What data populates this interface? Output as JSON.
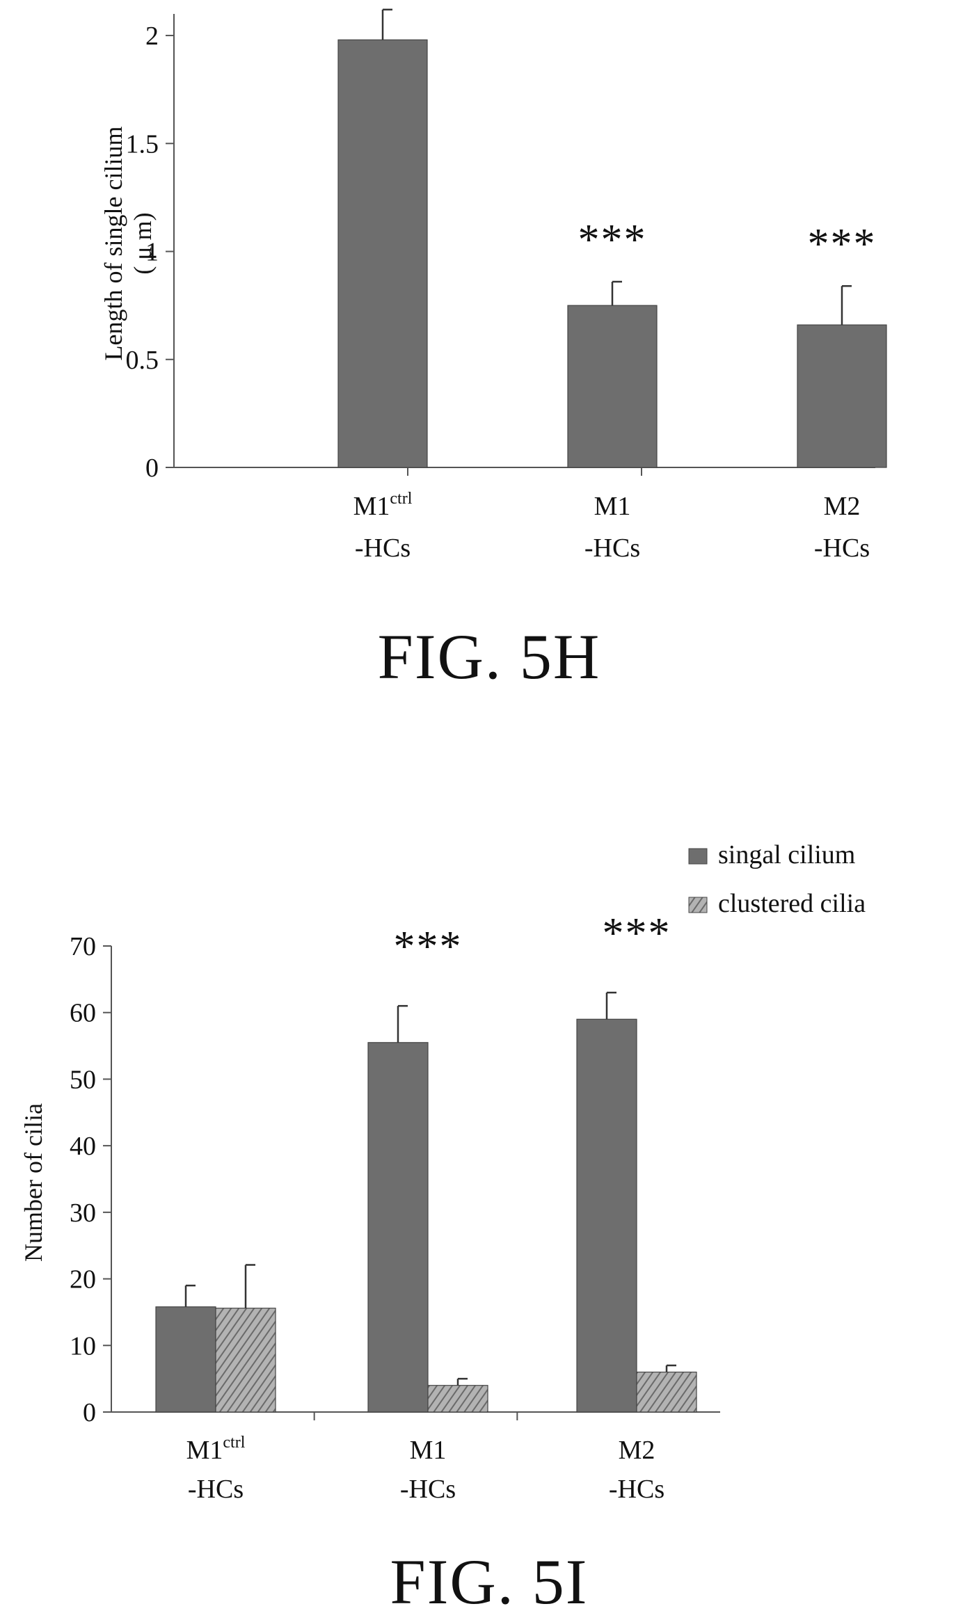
{
  "charts": [
    {
      "id": "fig5h",
      "caption": "FIG. 5H",
      "chart_data": {
        "type": "bar",
        "categories": [
          {
            "main": "M1",
            "sup": "ctrl",
            "sub": "-HCs"
          },
          {
            "main": "M1",
            "sup": "",
            "sub": "-HCs"
          },
          {
            "main": "M2",
            "sup": "",
            "sub": "-HCs"
          }
        ],
        "series": [
          {
            "values": [
              1.98,
              0.75,
              0.66
            ],
            "errors": [
              0.14,
              0.11,
              0.18
            ],
            "color": "#6e6e6e",
            "pattern": "solid"
          }
        ],
        "annotations": [
          "",
          "***",
          "***"
        ],
        "ylabel_line1": "Length of single cilium",
        "ylabel_line2": "( μ m)",
        "ylim": [
          0,
          2.1
        ],
        "yticks": [
          0,
          0.5,
          1,
          1.5,
          2
        ],
        "ytick_labels": [
          "0",
          "0.5",
          "1",
          "1.5",
          "2"
        ],
        "grid": false,
        "legend": false
      }
    },
    {
      "id": "fig5i",
      "caption": "FIG. 5I",
      "chart_data": {
        "type": "bar",
        "categories": [
          {
            "main": "M1",
            "sup": "ctrl",
            "sub": "-HCs"
          },
          {
            "main": "M1",
            "sup": "",
            "sub": "-HCs"
          },
          {
            "main": "M2",
            "sup": "",
            "sub": "-HCs"
          }
        ],
        "series": [
          {
            "name": "singal cilium",
            "values": [
              15.8,
              55.5,
              59.0
            ],
            "errors": [
              3.2,
              5.5,
              4.0
            ],
            "color": "#6e6e6e",
            "pattern": "solid"
          },
          {
            "name": "clustered cilia",
            "values": [
              15.6,
              4.0,
              6.0
            ],
            "errors": [
              6.5,
              1.0,
              1.0
            ],
            "color": "#9a9a9a",
            "pattern": "hatch"
          }
        ],
        "annotations": [
          "",
          "***",
          "***"
        ],
        "ylabel": "Number of cilia",
        "ylim": [
          0,
          70
        ],
        "yticks": [
          0,
          10,
          20,
          30,
          40,
          50,
          60,
          70
        ],
        "ytick_labels": [
          "0",
          "10",
          "20",
          "30",
          "40",
          "50",
          "60",
          "70"
        ],
        "grid": false,
        "legend": true,
        "legend_position": "top-right"
      }
    }
  ]
}
